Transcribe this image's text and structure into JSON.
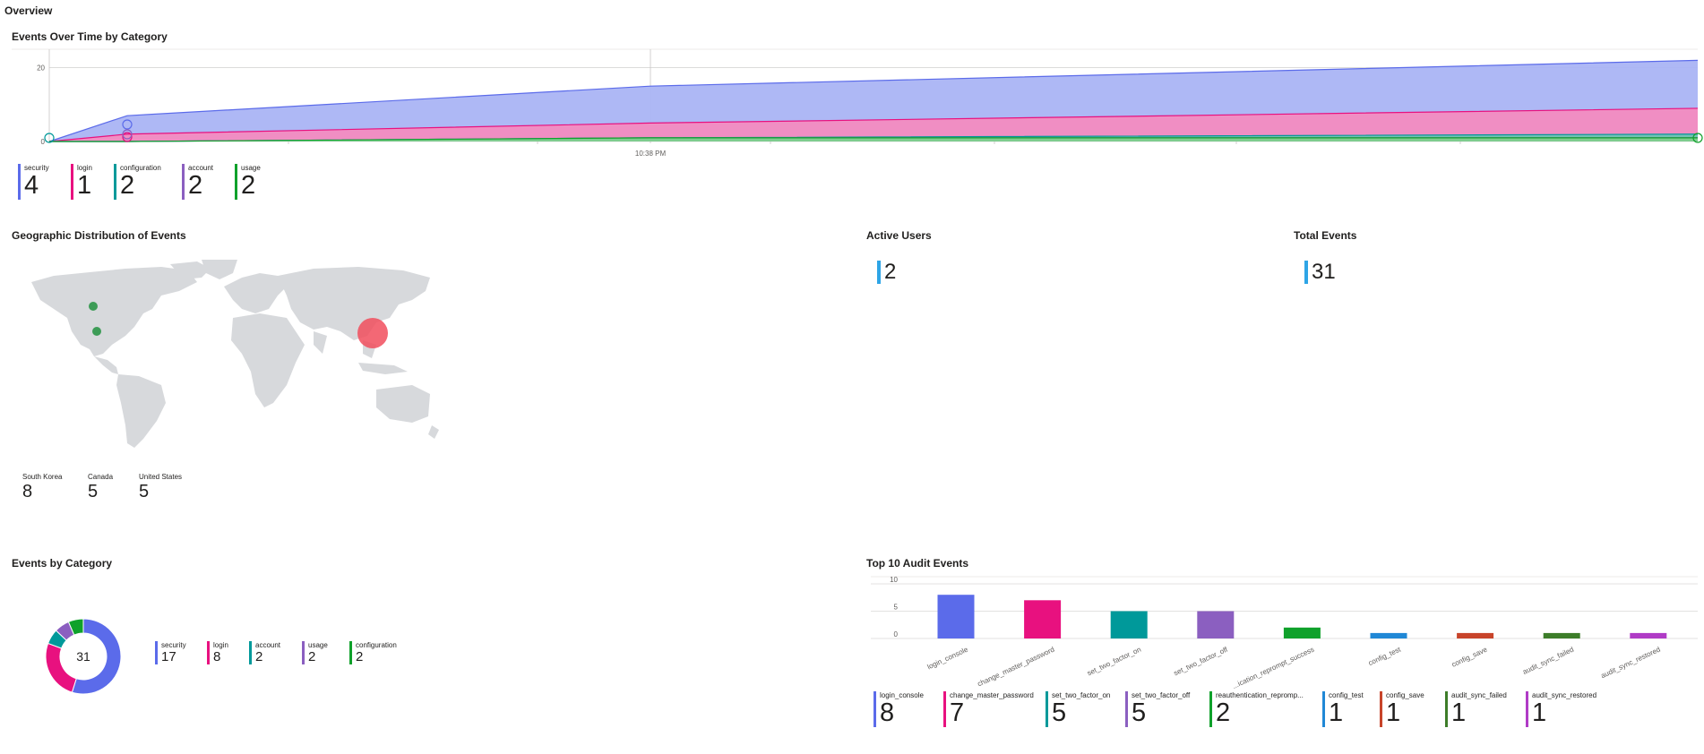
{
  "page": {
    "title": "Overview"
  },
  "timeline": {
    "title": "Events Over Time by Category",
    "x_tick": "10:38 PM",
    "legend": [
      {
        "label": "security",
        "value": "4",
        "color": "#5b6bea"
      },
      {
        "label": "login",
        "value": "1",
        "color": "#e8117f"
      },
      {
        "label": "configuration",
        "value": "2",
        "color": "#00999a"
      },
      {
        "label": "account",
        "value": "2",
        "color": "#8b5fc0"
      },
      {
        "label": "usage",
        "value": "2",
        "color": "#0fa12b"
      }
    ]
  },
  "geo": {
    "title": "Geographic Distribution of Events",
    "items": [
      {
        "label": "South Korea",
        "value": "8"
      },
      {
        "label": "Canada",
        "value": "5"
      },
      {
        "label": "United States",
        "value": "5"
      }
    ]
  },
  "active_users": {
    "title": "Active Users",
    "value": "2"
  },
  "total_events": {
    "title": "Total Events",
    "value": "31"
  },
  "category": {
    "title": "Events by Category",
    "center_value": "31",
    "legend": [
      {
        "label": "security",
        "value": "17",
        "color": "#5b6bea"
      },
      {
        "label": "login",
        "value": "8",
        "color": "#e8117f"
      },
      {
        "label": "account",
        "value": "2",
        "color": "#00999a"
      },
      {
        "label": "usage",
        "value": "2",
        "color": "#8b5fc0"
      },
      {
        "label": "configuration",
        "value": "2",
        "color": "#0fa12b"
      }
    ]
  },
  "audit": {
    "title": "Top 10 Audit Events",
    "legend": [
      {
        "label": "login_console",
        "value": "8",
        "color": "#5b6bea"
      },
      {
        "label": "change_master_password",
        "value": "7",
        "color": "#e8117f"
      },
      {
        "label": "set_two_factor_on",
        "value": "5",
        "color": "#00999a"
      },
      {
        "label": "set_two_factor_off",
        "value": "5",
        "color": "#8b5fc0"
      },
      {
        "label": "reauthentication_repromp...",
        "value": "2",
        "color": "#0fa12b"
      },
      {
        "label": "config_test",
        "value": "1",
        "color": "#2088d6"
      },
      {
        "label": "config_save",
        "value": "1",
        "color": "#c8442a"
      },
      {
        "label": "audit_sync_failed",
        "value": "1",
        "color": "#3d7d29"
      },
      {
        "label": "audit_sync_restored",
        "value": "1",
        "color": "#b03bc6"
      }
    ]
  },
  "chart_data": [
    {
      "type": "area",
      "title": "Events Over Time by Category",
      "x": [
        "",
        "",
        "10:38 PM",
        ""
      ],
      "ylim": [
        0,
        25
      ],
      "yticks": [
        0,
        20
      ],
      "series": [
        {
          "name": "security",
          "values": [
            0,
            7,
            15,
            22
          ]
        },
        {
          "name": "login",
          "values": [
            0,
            2,
            5,
            9
          ]
        },
        {
          "name": "configuration",
          "values": [
            0,
            0,
            1,
            2
          ]
        },
        {
          "name": "account",
          "values": [
            0,
            0,
            1,
            1
          ]
        },
        {
          "name": "usage",
          "values": [
            0,
            0,
            1,
            1
          ]
        }
      ]
    },
    {
      "type": "pie",
      "title": "Events by Category",
      "categories": [
        "security",
        "login",
        "account",
        "usage",
        "configuration"
      ],
      "values": [
        17,
        8,
        2,
        2,
        2
      ],
      "colors": [
        "#5b6bea",
        "#e8117f",
        "#00999a",
        "#8b5fc0",
        "#0fa12b"
      ]
    },
    {
      "type": "bar",
      "title": "Top 10 Audit Events",
      "categories": [
        "login_console",
        "change_master_password",
        "set_two_factor_on",
        "set_two_factor_off",
        "reauthentication_reprompt_success",
        "config_test",
        "config_save",
        "audit_sync_failed",
        "audit_sync_restored"
      ],
      "x_tick_labels": [
        "login_console",
        "change_master_password",
        "set_two_factor_on",
        "set_two_factor_off",
        "...ication_reprompt_success",
        "config_test",
        "config_save",
        "audit_sync_failed",
        "audit_sync_restored"
      ],
      "values": [
        8,
        7,
        5,
        5,
        2,
        1,
        1,
        1,
        1
      ],
      "colors": [
        "#5b6bea",
        "#e8117f",
        "#00999a",
        "#8b5fc0",
        "#0fa12b",
        "#2088d6",
        "#c8442a",
        "#3d7d29",
        "#b03bc6"
      ],
      "ylim": [
        0,
        10
      ],
      "yticks": [
        0,
        5,
        10
      ]
    }
  ]
}
